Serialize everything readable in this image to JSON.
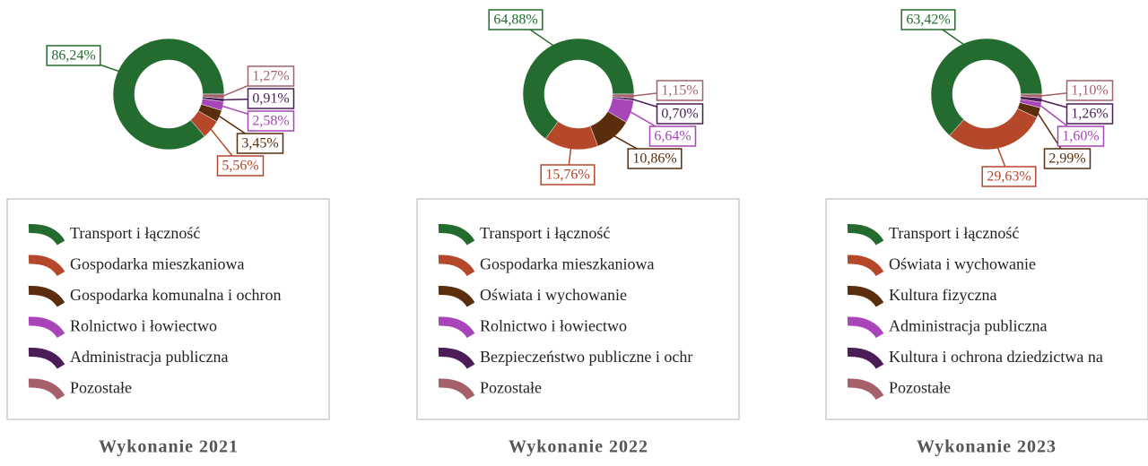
{
  "chart_data": [
    {
      "type": "pie",
      "title": "Wykonanie 2021",
      "categories": [
        "Transport i łączność",
        "Gospodarka mieszkaniowa",
        "Gospodarka komunalna i ochron",
        "Rolnictwo i łowiectwo",
        "Administracja publiczna",
        "Pozostałe"
      ],
      "values": [
        86.24,
        5.56,
        3.45,
        2.58,
        0.91,
        1.27
      ],
      "value_labels": [
        "86,24%",
        "5,56%",
        "3,45%",
        "2,58%",
        "0,91%",
        "1,27%"
      ],
      "colors": [
        "#236b2e",
        "#b5472a",
        "#5a2d0c",
        "#a845b8",
        "#4b1e5a",
        "#a6606a"
      ]
    },
    {
      "type": "pie",
      "title": "Wykonanie 2022",
      "categories": [
        "Transport i łączność",
        "Gospodarka mieszkaniowa",
        "Oświata i wychowanie",
        "Rolnictwo i łowiectwo",
        "Bezpieczeństwo publiczne i ochr",
        "Pozostałe"
      ],
      "values": [
        64.88,
        15.76,
        10.86,
        6.64,
        0.7,
        1.15
      ],
      "value_labels": [
        "64,88%",
        "15,76%",
        "10,86%",
        "6,64%",
        "0,70%",
        "1,15%"
      ],
      "colors": [
        "#236b2e",
        "#b5472a",
        "#5a2d0c",
        "#a845b8",
        "#4b1e5a",
        "#a6606a"
      ]
    },
    {
      "type": "pie",
      "title": "Wykonanie 2023",
      "categories": [
        "Transport i łączność",
        "Oświata i wychowanie",
        "Kultura fizyczna",
        "Administracja publiczna",
        "Kultura i ochrona dziedzictwa na",
        "Pozostałe"
      ],
      "values": [
        63.42,
        29.63,
        2.99,
        1.6,
        1.26,
        1.1
      ],
      "value_labels": [
        "63,42%",
        "29,63%",
        "2,99%",
        "1,60%",
        "1,26%",
        "1,10%"
      ],
      "colors": [
        "#236b2e",
        "#b5472a",
        "#5a2d0c",
        "#a845b8",
        "#4b1e5a",
        "#a6606a"
      ]
    }
  ]
}
